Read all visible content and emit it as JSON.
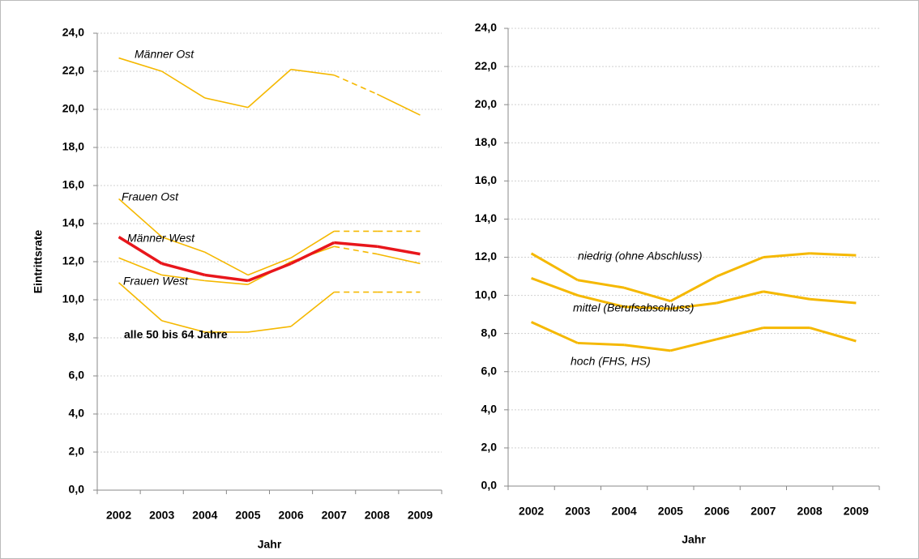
{
  "chart_data": [
    {
      "type": "line",
      "y_label": "Eintrittsrate",
      "x_label": "Jahr",
      "categories": [
        "2002",
        "2003",
        "2004",
        "2005",
        "2006",
        "2007",
        "2008",
        "2009"
      ],
      "ylim": [
        0,
        24
      ],
      "yticks": [
        {
          "value": 0,
          "label": "0,0"
        },
        {
          "value": 2,
          "label": "2,0"
        },
        {
          "value": 4,
          "label": "4,0"
        },
        {
          "value": 6,
          "label": "6,0"
        },
        {
          "value": 8,
          "label": "8,0"
        },
        {
          "value": 10,
          "label": "10,0"
        },
        {
          "value": 12,
          "label": "12,0"
        },
        {
          "value": 14,
          "label": "14,0"
        },
        {
          "value": 16,
          "label": "16,0"
        },
        {
          "value": 18,
          "label": "18,0"
        },
        {
          "value": 20,
          "label": "20,0"
        },
        {
          "value": 22,
          "label": "22,0"
        },
        {
          "value": 24,
          "label": "24,0"
        }
      ],
      "grid": true,
      "series": [
        {
          "name": "Männer Ost",
          "color": "#f5b800",
          "values": [
            22.7,
            22.0,
            20.6,
            20.1,
            22.1,
            21.8,
            20.8,
            19.7
          ],
          "line_styles": [
            "solid",
            "solid",
            "solid",
            "solid",
            "solid",
            "dashed",
            "solid"
          ]
        },
        {
          "name": "Frauen Ost",
          "color": "#f5b800",
          "values": [
            15.3,
            13.3,
            12.5,
            11.3,
            12.2,
            13.6,
            13.6,
            13.6
          ],
          "line_styles": [
            "solid",
            "solid",
            "solid",
            "solid",
            "solid",
            "dashed",
            "dashed"
          ]
        },
        {
          "name": "Männer West",
          "color": "#f5b800",
          "values": [
            12.2,
            11.3,
            11.0,
            10.8,
            12.0,
            12.8,
            12.4,
            11.9
          ],
          "line_styles": [
            "solid",
            "solid",
            "solid",
            "solid",
            "solid",
            "dashed",
            "solid"
          ]
        },
        {
          "name": "Frauen West",
          "color": "#f5b800",
          "values": [
            10.9,
            8.9,
            8.3,
            8.3,
            8.6,
            10.4,
            10.4,
            10.4
          ],
          "line_styles": [
            "solid",
            "solid",
            "solid",
            "solid",
            "solid",
            "dashed",
            "dashed"
          ]
        },
        {
          "name": "alle 50 bis 64 Jahre",
          "color": "#e8161b",
          "values": [
            13.3,
            11.9,
            11.3,
            11.0,
            11.9,
            13.0,
            12.8,
            12.4
          ],
          "line_styles": [
            "solid",
            "solid",
            "solid",
            "solid",
            "solid",
            "solid",
            "solid"
          ]
        }
      ]
    },
    {
      "type": "line",
      "x_label": "Jahr",
      "categories": [
        "2002",
        "2003",
        "2004",
        "2005",
        "2006",
        "2007",
        "2008",
        "2009"
      ],
      "ylim": [
        0,
        24
      ],
      "yticks": [
        {
          "value": 0,
          "label": "0,0"
        },
        {
          "value": 2,
          "label": "2,0"
        },
        {
          "value": 4,
          "label": "4,0"
        },
        {
          "value": 6,
          "label": "6,0"
        },
        {
          "value": 8,
          "label": "8,0"
        },
        {
          "value": 10,
          "label": "10,0"
        },
        {
          "value": 12,
          "label": "12,0"
        },
        {
          "value": 14,
          "label": "14,0"
        },
        {
          "value": 16,
          "label": "16,0"
        },
        {
          "value": 18,
          "label": "18,0"
        },
        {
          "value": 20,
          "label": "20,0"
        },
        {
          "value": 22,
          "label": "22,0"
        },
        {
          "value": 24,
          "label": "24,0"
        }
      ],
      "grid": true,
      "series": [
        {
          "name": "niedrig (ohne Abschluss)",
          "color": "#f5b800",
          "values": [
            12.2,
            10.8,
            10.4,
            9.7,
            11.0,
            12.0,
            12.2,
            12.1
          ],
          "line_styles": [
            "solid",
            "solid",
            "solid",
            "solid",
            "solid",
            "solid",
            "solid"
          ]
        },
        {
          "name": "mittel (Berufsabschluss)",
          "color": "#f5b800",
          "values": [
            10.9,
            10.0,
            9.4,
            9.3,
            9.6,
            10.2,
            9.8,
            9.6
          ],
          "line_styles": [
            "solid",
            "solid",
            "solid",
            "solid",
            "solid",
            "solid",
            "solid"
          ]
        },
        {
          "name": "hoch (FHS, HS)",
          "color": "#f5b800",
          "values": [
            8.6,
            7.5,
            7.4,
            7.1,
            7.7,
            8.3,
            8.3,
            7.6
          ],
          "line_styles": [
            "solid",
            "solid",
            "solid",
            "solid",
            "solid",
            "solid",
            "solid"
          ]
        }
      ]
    }
  ]
}
